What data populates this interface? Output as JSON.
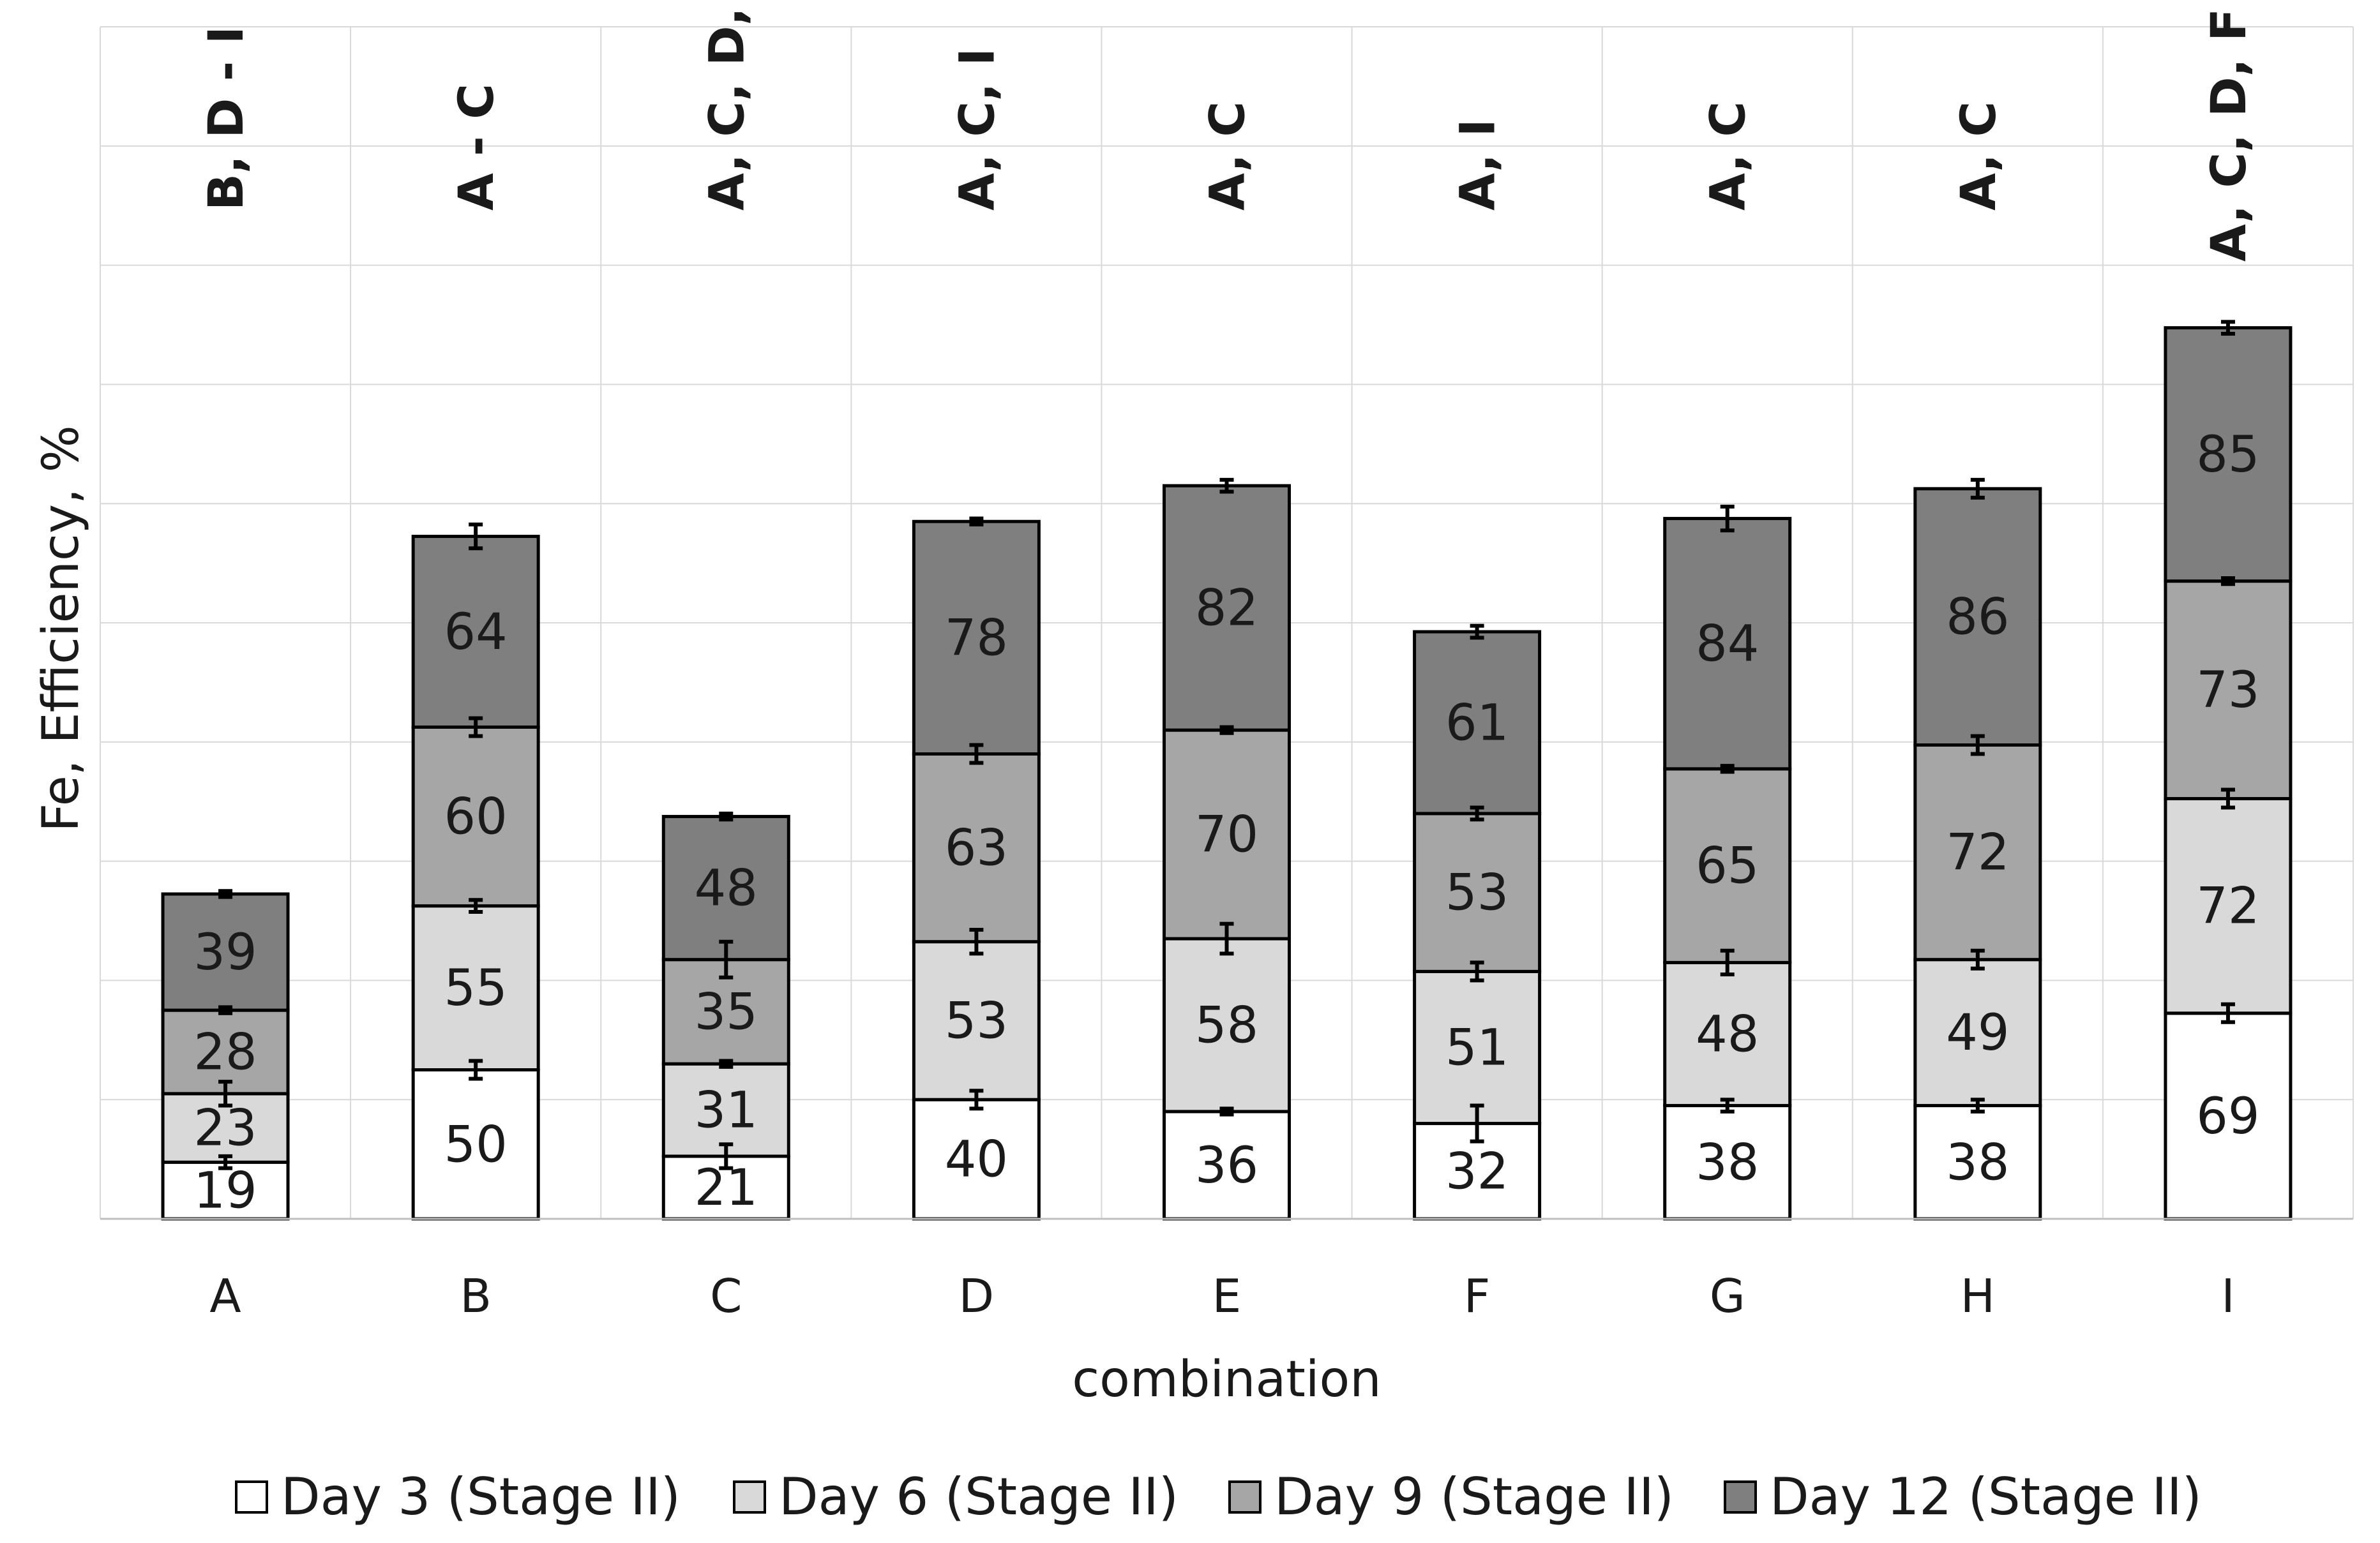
{
  "chart_data": {
    "type": "bar",
    "stacked": true,
    "ylabel": "Fe, Efficiency, %",
    "xlabel": "combination",
    "categories": [
      "A",
      "B",
      "C",
      "D",
      "E",
      "F",
      "G",
      "H",
      "I"
    ],
    "series": [
      {
        "name": "Day 3 (Stage II)",
        "color": "#ffffff",
        "values": [
          19,
          50,
          21,
          40,
          36,
          32,
          38,
          38,
          69
        ],
        "error": [
          2,
          3,
          4,
          3,
          1,
          6,
          2,
          2,
          3
        ]
      },
      {
        "name": "Day 6 (Stage II)",
        "color": "#d9d9d9",
        "values": [
          23,
          55,
          31,
          53,
          58,
          51,
          48,
          49,
          72
        ],
        "error": [
          4,
          2,
          1,
          4,
          5,
          3,
          4,
          3,
          3
        ]
      },
      {
        "name": "Day 9 (Stage II)",
        "color": "#a6a6a6",
        "values": [
          28,
          60,
          35,
          63,
          70,
          53,
          65,
          72,
          73
        ],
        "error": [
          1,
          3,
          6,
          3,
          1,
          2,
          1,
          3,
          1
        ]
      },
      {
        "name": "Day 12 (Stage II)",
        "color": "#7f7f7f",
        "values": [
          39,
          64,
          48,
          78,
          82,
          61,
          84,
          86,
          85
        ],
        "error": [
          1,
          4,
          1,
          1,
          2,
          2,
          4,
          3,
          2
        ]
      }
    ],
    "significance": [
      "B, D - I",
      "A - C",
      "A, C, D, G - I",
      "A, C, I",
      "A, C",
      "A, I",
      "A, C",
      "A, C",
      "A, C, D, F"
    ],
    "ylim": [
      0,
      400
    ],
    "gridlines": true,
    "yticks_shown": false,
    "legend_position": "bottom"
  }
}
